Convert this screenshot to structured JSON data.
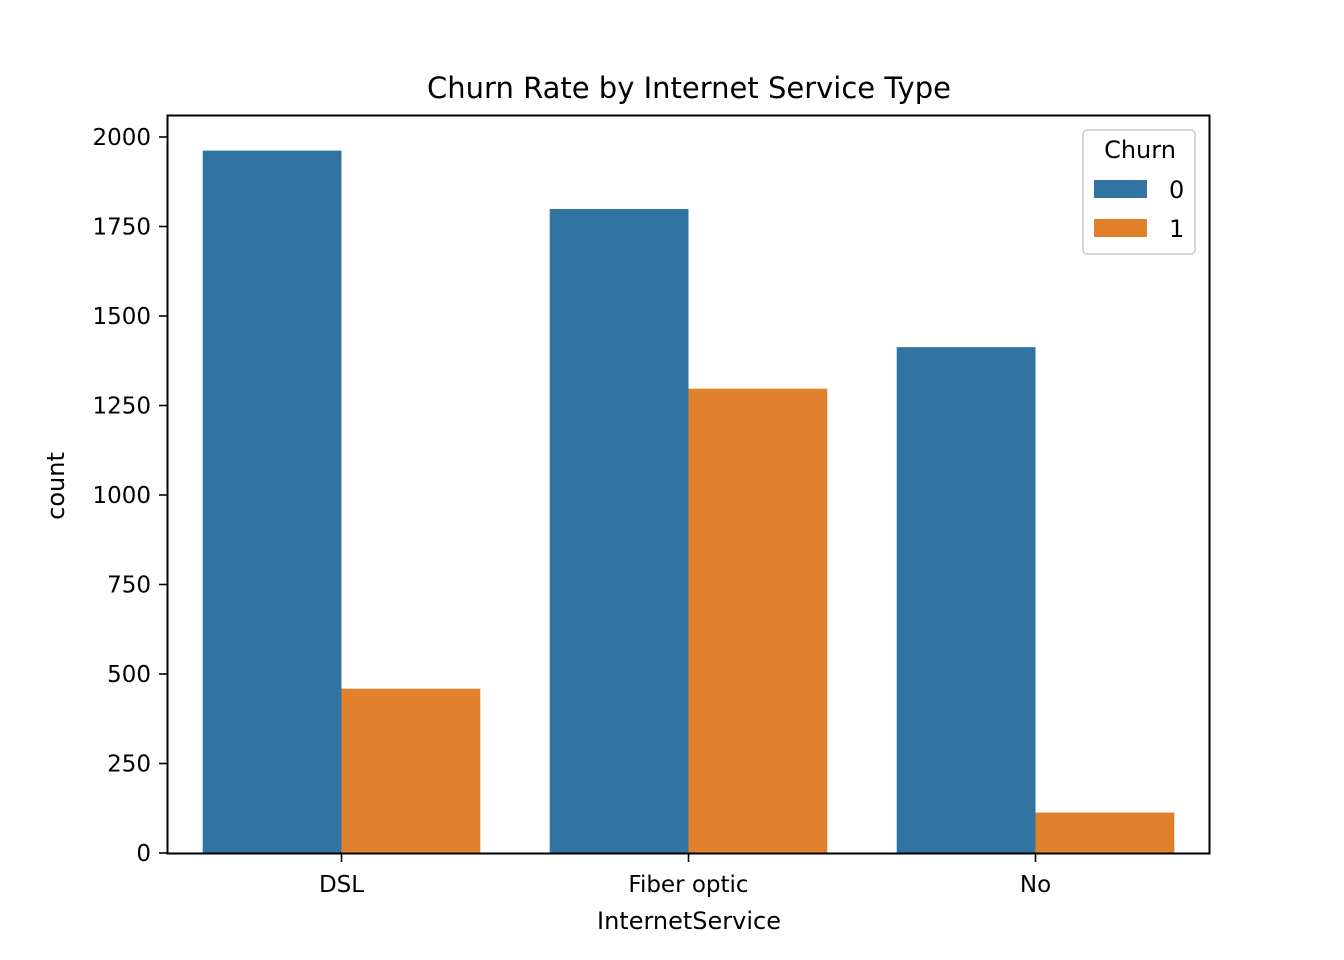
{
  "chart_data": {
    "type": "bar",
    "title": "Churn Rate by Internet Service Type",
    "xlabel": "InternetService",
    "ylabel": "count",
    "categories": [
      "DSL",
      "Fiber optic",
      "No"
    ],
    "series": [
      {
        "name": "0",
        "values": [
          1962,
          1799,
          1413
        ],
        "color": "#3274a1"
      },
      {
        "name": "1",
        "values": [
          459,
          1297,
          113
        ],
        "color": "#e1812c"
      }
    ],
    "yticks": [
      0,
      250,
      500,
      750,
      1000,
      1250,
      1500,
      1750,
      2000
    ],
    "ylim": [
      0,
      2000
    ],
    "grid": false,
    "legend": {
      "title": "Churn",
      "placement": "top-right"
    }
  }
}
